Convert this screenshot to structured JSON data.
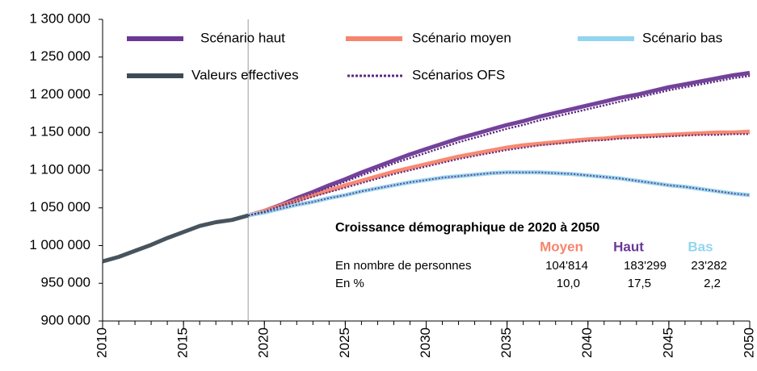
{
  "chart_data": {
    "type": "line",
    "x": [
      2010,
      2011,
      2012,
      2013,
      2014,
      2015,
      2016,
      2017,
      2018,
      2019,
      2020,
      2021,
      2022,
      2023,
      2024,
      2025,
      2026,
      2027,
      2028,
      2029,
      2030,
      2031,
      2032,
      2033,
      2034,
      2035,
      2036,
      2037,
      2038,
      2039,
      2040,
      2041,
      2042,
      2043,
      2044,
      2045,
      2046,
      2047,
      2048,
      2049,
      2050
    ],
    "xlim": [
      2010,
      2050
    ],
    "xticks": [
      2010,
      2015,
      2020,
      2025,
      2030,
      2035,
      2040,
      2045,
      2050
    ],
    "ylim": [
      900000,
      1300000
    ],
    "yticks": [
      {
        "value": 900000,
        "label": "900 000"
      },
      {
        "value": 950000,
        "label": "950 000"
      },
      {
        "value": 1000000,
        "label": "1 000 000"
      },
      {
        "value": 1050000,
        "label": "1 050 000"
      },
      {
        "value": 1100000,
        "label": "1 100 000"
      },
      {
        "value": 1150000,
        "label": "1 150 000"
      },
      {
        "value": 1200000,
        "label": "1 200 000"
      },
      {
        "value": 1250000,
        "label": "1 250 000"
      },
      {
        "value": 1300000,
        "label": "1 300 000"
      }
    ],
    "vline_x": 2019,
    "series": [
      {
        "name": "Scénario haut",
        "color": "#6b3896",
        "values": [
          null,
          null,
          null,
          null,
          null,
          null,
          null,
          null,
          null,
          1040000,
          1046000,
          1054000,
          1063000,
          1071000,
          1080000,
          1088000,
          1097000,
          1105000,
          1113000,
          1121000,
          1128000,
          1135000,
          1142000,
          1148000,
          1154000,
          1160000,
          1165000,
          1171000,
          1176000,
          1181000,
          1186000,
          1191000,
          1196000,
          1200000,
          1205000,
          1210000,
          1214000,
          1218000,
          1222000,
          1226000,
          1229000
        ]
      },
      {
        "name": "Scénario moyen",
        "color": "#f7846c",
        "values": [
          null,
          null,
          null,
          null,
          null,
          null,
          null,
          null,
          null,
          1040000,
          1046000,
          1053000,
          1060000,
          1067000,
          1073000,
          1080000,
          1086000,
          1092000,
          1098000,
          1103000,
          1108000,
          1113000,
          1118000,
          1122000,
          1126000,
          1130000,
          1133000,
          1135000,
          1137000,
          1139000,
          1141000,
          1142000,
          1144000,
          1145000,
          1146000,
          1147000,
          1148000,
          1149000,
          1150000,
          1150000,
          1151000
        ]
      },
      {
        "name": "Scénario bas",
        "color": "#92d5ee",
        "values": [
          null,
          null,
          null,
          null,
          null,
          null,
          null,
          null,
          null,
          1040000,
          1044000,
          1049000,
          1054000,
          1058000,
          1063000,
          1067000,
          1072000,
          1076000,
          1080000,
          1084000,
          1087000,
          1090000,
          1092000,
          1094000,
          1096000,
          1097000,
          1097000,
          1097000,
          1096000,
          1095000,
          1093000,
          1091000,
          1089000,
          1086000,
          1083000,
          1080000,
          1078000,
          1075000,
          1072000,
          1069000,
          1067000
        ]
      },
      {
        "name": "Valeurs effectives",
        "color": "#3d4b55",
        "values": [
          979000,
          985000,
          993000,
          1001000,
          1010000,
          1018000,
          1026000,
          1031000,
          1034000,
          1040000,
          null,
          null,
          null,
          null,
          null,
          null,
          null,
          null,
          null,
          null,
          null,
          null,
          null,
          null,
          null,
          null,
          null,
          null,
          null,
          null,
          null,
          null,
          null,
          null,
          null,
          null,
          null,
          null,
          null,
          null,
          null
        ]
      }
    ],
    "reference": {
      "name": "Scénarios OFS",
      "color": "#5b2a80",
      "values": [
        [
          null,
          null,
          null,
          null,
          null,
          null,
          null,
          null,
          null,
          1040000,
          1045000,
          1053000,
          1061000,
          1069000,
          1077000,
          1085000,
          1093000,
          1101000,
          1109000,
          1116000,
          1123000,
          1130000,
          1137000,
          1143000,
          1149000,
          1155000,
          1160000,
          1166000,
          1171000,
          1176000,
          1181000,
          1186000,
          1191000,
          1196000,
          1201000,
          1206000,
          1210000,
          1214000,
          1218000,
          1222000,
          1225000
        ],
        [
          null,
          null,
          null,
          null,
          null,
          null,
          null,
          null,
          null,
          1040000,
          1045000,
          1052000,
          1058000,
          1065000,
          1071000,
          1077000,
          1083000,
          1089000,
          1095000,
          1100000,
          1105000,
          1110000,
          1115000,
          1119000,
          1123000,
          1127000,
          1130000,
          1133000,
          1135000,
          1137000,
          1139000,
          1140000,
          1142000,
          1143000,
          1144000,
          1145000,
          1146000,
          1147000,
          1147000,
          1148000,
          1148000
        ],
        [
          null,
          null,
          null,
          null,
          null,
          null,
          null,
          null,
          null,
          1040000,
          1044000,
          1049000,
          1054000,
          1058000,
          1063000,
          1067000,
          1072000,
          1076000,
          1080000,
          1084000,
          1087000,
          1090000,
          1092000,
          1094000,
          1096000,
          1097000,
          1097000,
          1097000,
          1096000,
          1095000,
          1093000,
          1091000,
          1089000,
          1086000,
          1083000,
          1080000,
          1078000,
          1075000,
          1072000,
          1069000,
          1067000
        ]
      ]
    },
    "annotation": {
      "title": "Croissance démographique de 2020 à 2050",
      "columns": [
        {
          "label": "Moyen",
          "color": "#f7846c"
        },
        {
          "label": "Haut",
          "color": "#6b3896"
        },
        {
          "label": "Bas",
          "color": "#92d5ee"
        }
      ],
      "rows": [
        {
          "label": "En nombre de personnes",
          "cells": [
            "104'814",
            "183'299",
            "23'282"
          ]
        },
        {
          "label": "En %",
          "cells": [
            "10,0",
            "17,5",
            "2,2"
          ]
        }
      ]
    }
  }
}
